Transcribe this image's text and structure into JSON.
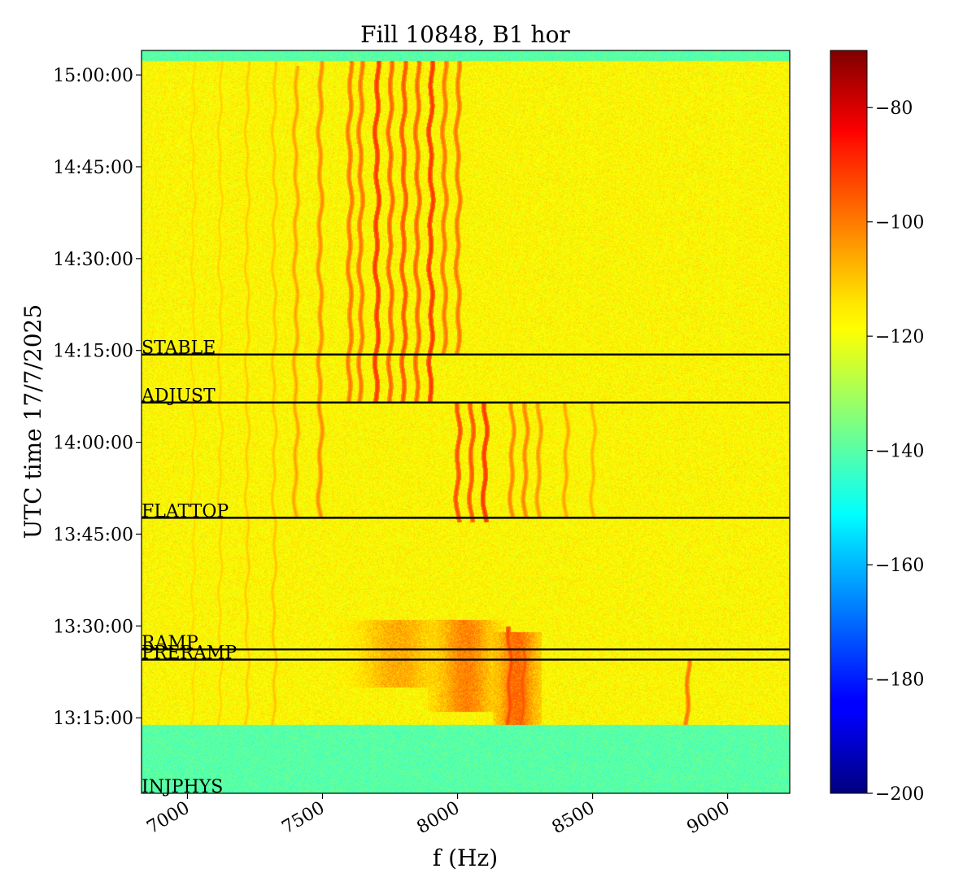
{
  "chart_data": {
    "type": "heatmap",
    "title": "Fill 10848, B1 hor",
    "xlabel": "f (Hz)",
    "ylabel": "UTC time 17/7/2025",
    "xlim": [
      6830,
      9230
    ],
    "ylim": [
      "13:02:40",
      "15:04:00"
    ],
    "x_ticks": [
      {
        "value": 7000,
        "label": "7000"
      },
      {
        "value": 7500,
        "label": "7500"
      },
      {
        "value": 8000,
        "label": "8000"
      },
      {
        "value": 8500,
        "label": "8500"
      },
      {
        "value": 9000,
        "label": "9000"
      }
    ],
    "y_ticks": [
      {
        "value": "13:15:00",
        "label": "13:15:00"
      },
      {
        "value": "13:30:00",
        "label": "13:30:00"
      },
      {
        "value": "13:45:00",
        "label": "13:45:00"
      },
      {
        "value": "14:00:00",
        "label": "14:00:00"
      },
      {
        "value": "14:15:00",
        "label": "14:15:00"
      },
      {
        "value": "14:30:00",
        "label": "14:30:00"
      },
      {
        "value": "14:45:00",
        "label": "14:45:00"
      },
      {
        "value": "15:00:00",
        "label": "15:00:00"
      }
    ],
    "colormap": "jet",
    "colorbar": {
      "range": [
        -200,
        -70
      ],
      "ticks": [
        {
          "value": -80,
          "label": "−80"
        },
        {
          "value": -100,
          "label": "−100"
        },
        {
          "value": -120,
          "label": "−120"
        },
        {
          "value": -140,
          "label": "−140"
        },
        {
          "value": -160,
          "label": "−160"
        },
        {
          "value": -180,
          "label": "−180"
        },
        {
          "value": -200,
          "label": "−200"
        }
      ]
    },
    "background_level": -118,
    "no_beam_level": -140,
    "no_beam_intervals": [
      {
        "start": "13:02:40",
        "end": "13:13:50"
      },
      {
        "start": "15:02:20",
        "end": "15:04:00"
      }
    ],
    "beam_modes": [
      {
        "label": "INJPHYS",
        "time": "13:02:40"
      },
      {
        "label": "PRERAMP",
        "time": "13:24:30"
      },
      {
        "label": "RAMP",
        "time": "13:26:10"
      },
      {
        "label": "FLATTOP",
        "time": "13:47:40"
      },
      {
        "label": "ADJUST",
        "time": "14:06:30"
      },
      {
        "label": "STABLE",
        "time": "14:14:20"
      }
    ],
    "lines": [
      {
        "f": 7020,
        "start": "13:13:50",
        "end": "15:02:20",
        "level": -113
      },
      {
        "f": 7120,
        "start": "13:13:50",
        "end": "15:02:20",
        "level": -112
      },
      {
        "f": 7220,
        "start": "13:13:50",
        "end": "15:02:20",
        "level": -111
      },
      {
        "f": 7320,
        "start": "13:13:50",
        "end": "15:02:20",
        "level": -110
      },
      {
        "f": 7400,
        "start": "13:47:40",
        "end": "15:01:30",
        "level": -106
      },
      {
        "f": 7490,
        "start": "13:47:40",
        "end": "15:02:20",
        "level": -103
      },
      {
        "f": 7600,
        "start": "14:06:30",
        "end": "15:02:20",
        "level": -100
      },
      {
        "f": 7640,
        "start": "14:06:30",
        "end": "15:02:20",
        "level": -100
      },
      {
        "f": 7700,
        "start": "14:06:30",
        "end": "15:02:20",
        "level": -92
      },
      {
        "f": 7750,
        "start": "14:06:30",
        "end": "15:02:20",
        "level": -98
      },
      {
        "f": 7800,
        "start": "14:06:30",
        "end": "15:02:20",
        "level": -96
      },
      {
        "f": 7850,
        "start": "14:06:30",
        "end": "15:02:20",
        "level": -98
      },
      {
        "f": 7900,
        "start": "14:06:30",
        "end": "15:02:20",
        "level": -92
      },
      {
        "f": 7950,
        "start": "14:14:20",
        "end": "15:02:20",
        "level": -100
      },
      {
        "f": 8000,
        "start": "14:14:20",
        "end": "15:02:20",
        "level": -100
      },
      {
        "f": 8000,
        "start": "13:47:00",
        "end": "14:06:30",
        "level": -95
      },
      {
        "f": 8050,
        "start": "13:47:00",
        "end": "14:06:30",
        "level": -96
      },
      {
        "f": 8100,
        "start": "13:47:00",
        "end": "14:06:30",
        "level": -92
      },
      {
        "f": 8200,
        "start": "13:47:40",
        "end": "14:06:30",
        "level": -102
      },
      {
        "f": 8250,
        "start": "13:47:40",
        "end": "14:06:30",
        "level": -102
      },
      {
        "f": 8300,
        "start": "13:47:40",
        "end": "14:06:30",
        "level": -104
      },
      {
        "f": 8400,
        "start": "13:47:40",
        "end": "14:06:30",
        "level": -106
      },
      {
        "f": 8500,
        "start": "13:47:40",
        "end": "14:06:30",
        "level": -108
      },
      {
        "f": 8850,
        "start": "13:13:50",
        "end": "13:24:30",
        "level": -100
      },
      {
        "f": 8190,
        "start": "13:13:50",
        "end": "13:30:00",
        "level": -94
      },
      {
        "f": 8240,
        "start": "13:13:50",
        "end": "13:26:10",
        "level": -96
      }
    ],
    "blobs": [
      {
        "f_center": 8030,
        "f_halfwidth": 110,
        "start": "13:16:00",
        "end": "13:31:00",
        "level": -103
      },
      {
        "f_center": 8220,
        "f_halfwidth": 70,
        "start": "13:13:50",
        "end": "13:29:00",
        "level": -100
      },
      {
        "f_center": 7780,
        "f_halfwidth": 180,
        "start": "13:20:00",
        "end": "13:31:00",
        "level": -108
      }
    ]
  }
}
